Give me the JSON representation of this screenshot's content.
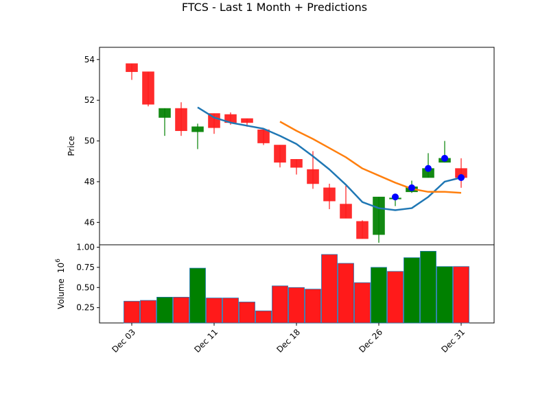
{
  "chart_data": {
    "type": "candlestick",
    "title": "FTCS - Last 1 Month + Predictions",
    "price_panel": {
      "ylabel": "Price",
      "ylim": [
        44.9,
        54.6
      ],
      "yticks": [
        46,
        48,
        50,
        52,
        54
      ],
      "ytick_labels": [
        "46",
        "48",
        "50",
        "52",
        "54"
      ],
      "up_color": "#008000",
      "down_color": "#ff1a1a",
      "candles": [
        {
          "x": 0,
          "open": 53.8,
          "close": 53.4,
          "high": 53.8,
          "low": 53.0
        },
        {
          "x": 1,
          "open": 53.4,
          "close": 51.8,
          "high": 53.4,
          "low": 51.7
        },
        {
          "x": 2,
          "open": 51.15,
          "close": 51.6,
          "high": 51.6,
          "low": 50.25
        },
        {
          "x": 3,
          "open": 51.6,
          "close": 50.5,
          "high": 51.9,
          "low": 50.25
        },
        {
          "x": 4,
          "open": 50.45,
          "close": 50.7,
          "high": 50.85,
          "low": 49.6
        },
        {
          "x": 5,
          "open": 51.35,
          "close": 50.65,
          "high": 51.35,
          "low": 50.35
        },
        {
          "x": 6,
          "open": 51.3,
          "close": 50.9,
          "high": 51.4,
          "low": 50.8
        },
        {
          "x": 7,
          "open": 51.1,
          "close": 50.9,
          "high": 51.1,
          "low": 50.7
        },
        {
          "x": 8,
          "open": 50.55,
          "close": 49.9,
          "high": 50.55,
          "low": 49.8
        },
        {
          "x": 9,
          "open": 49.8,
          "close": 48.95,
          "high": 49.8,
          "low": 48.7
        },
        {
          "x": 10,
          "open": 49.1,
          "close": 48.7,
          "high": 49.1,
          "low": 48.35
        },
        {
          "x": 11,
          "open": 48.6,
          "close": 47.9,
          "high": 49.5,
          "low": 47.65
        },
        {
          "x": 12,
          "open": 47.7,
          "close": 47.05,
          "high": 47.9,
          "low": 46.65
        },
        {
          "x": 13,
          "open": 46.9,
          "close": 46.2,
          "high": 47.8,
          "low": 46.2
        },
        {
          "x": 14,
          "open": 46.05,
          "close": 45.2,
          "high": 46.1,
          "low": 45.2
        },
        {
          "x": 15,
          "open": 45.4,
          "close": 47.25,
          "high": 47.25,
          "low": 45.0
        },
        {
          "x": 16,
          "open": 47.2,
          "close": 47.2,
          "high": 47.4,
          "low": 46.8
        },
        {
          "x": 17,
          "open": 47.5,
          "close": 47.75,
          "high": 48.05,
          "low": 47.45
        },
        {
          "x": 18,
          "open": 48.2,
          "close": 48.65,
          "high": 49.4,
          "low": 48.2
        },
        {
          "x": 19,
          "open": 48.95,
          "close": 49.15,
          "high": 50.0,
          "low": 48.95
        },
        {
          "x": 20,
          "open": 48.65,
          "close": 48.2,
          "high": 49.15,
          "low": 47.7
        }
      ],
      "series": [
        {
          "color": "#1f77b4",
          "x": [
            4,
            5,
            6,
            7,
            8,
            9,
            10,
            11,
            12,
            13,
            14,
            15,
            16,
            17,
            18,
            19,
            20
          ],
          "y": [
            51.65,
            51.15,
            50.9,
            50.75,
            50.6,
            50.25,
            49.85,
            49.25,
            48.6,
            47.85,
            47.0,
            46.7,
            46.6,
            46.7,
            47.25,
            48.0,
            48.2
          ]
        },
        {
          "color": "#ff7f0e",
          "x": [
            9,
            10,
            11,
            12,
            13,
            14,
            15,
            16,
            17,
            18,
            19,
            20
          ],
          "y": [
            50.95,
            50.5,
            50.1,
            49.65,
            49.2,
            48.65,
            48.3,
            47.95,
            47.65,
            47.5,
            47.5,
            47.45
          ]
        }
      ],
      "predictions": {
        "color": "#0000ff",
        "x": [
          16,
          17,
          18,
          19,
          20
        ],
        "y": [
          47.25,
          47.7,
          48.65,
          49.15,
          48.2
        ]
      }
    },
    "volume_panel": {
      "ylabel": "Volume",
      "exponent_label": "10",
      "exponent": "6",
      "ylim": [
        0.06,
        1.03
      ],
      "yticks": [
        0.25,
        0.5,
        0.75,
        1.0
      ],
      "ytick_labels": [
        "0.25",
        "0.50",
        "0.75",
        "1.00"
      ],
      "bars": [
        {
          "x": 0,
          "value": 0.33,
          "direction": "down"
        },
        {
          "x": 1,
          "value": 0.34,
          "direction": "down"
        },
        {
          "x": 2,
          "value": 0.38,
          "direction": "up"
        },
        {
          "x": 3,
          "value": 0.38,
          "direction": "down"
        },
        {
          "x": 4,
          "value": 0.74,
          "direction": "up"
        },
        {
          "x": 5,
          "value": 0.37,
          "direction": "down"
        },
        {
          "x": 6,
          "value": 0.37,
          "direction": "down"
        },
        {
          "x": 7,
          "value": 0.32,
          "direction": "down"
        },
        {
          "x": 8,
          "value": 0.21,
          "direction": "down"
        },
        {
          "x": 9,
          "value": 0.52,
          "direction": "down"
        },
        {
          "x": 10,
          "value": 0.5,
          "direction": "down"
        },
        {
          "x": 11,
          "value": 0.48,
          "direction": "down"
        },
        {
          "x": 12,
          "value": 0.91,
          "direction": "down"
        },
        {
          "x": 13,
          "value": 0.8,
          "direction": "down"
        },
        {
          "x": 14,
          "value": 0.56,
          "direction": "down"
        },
        {
          "x": 15,
          "value": 0.75,
          "direction": "up"
        },
        {
          "x": 16,
          "value": 0.7,
          "direction": "down"
        },
        {
          "x": 17,
          "value": 0.87,
          "direction": "up"
        },
        {
          "x": 18,
          "value": 0.95,
          "direction": "up"
        },
        {
          "x": 19,
          "value": 0.76,
          "direction": "up"
        },
        {
          "x": 20,
          "value": 0.76,
          "direction": "down"
        }
      ]
    },
    "xaxis": {
      "ticks": [
        0,
        5,
        10,
        15,
        20
      ],
      "tick_labels": [
        "Dec 03",
        "Dec 11",
        "Dec 18",
        "Dec 26",
        "Dec 31"
      ]
    }
  }
}
